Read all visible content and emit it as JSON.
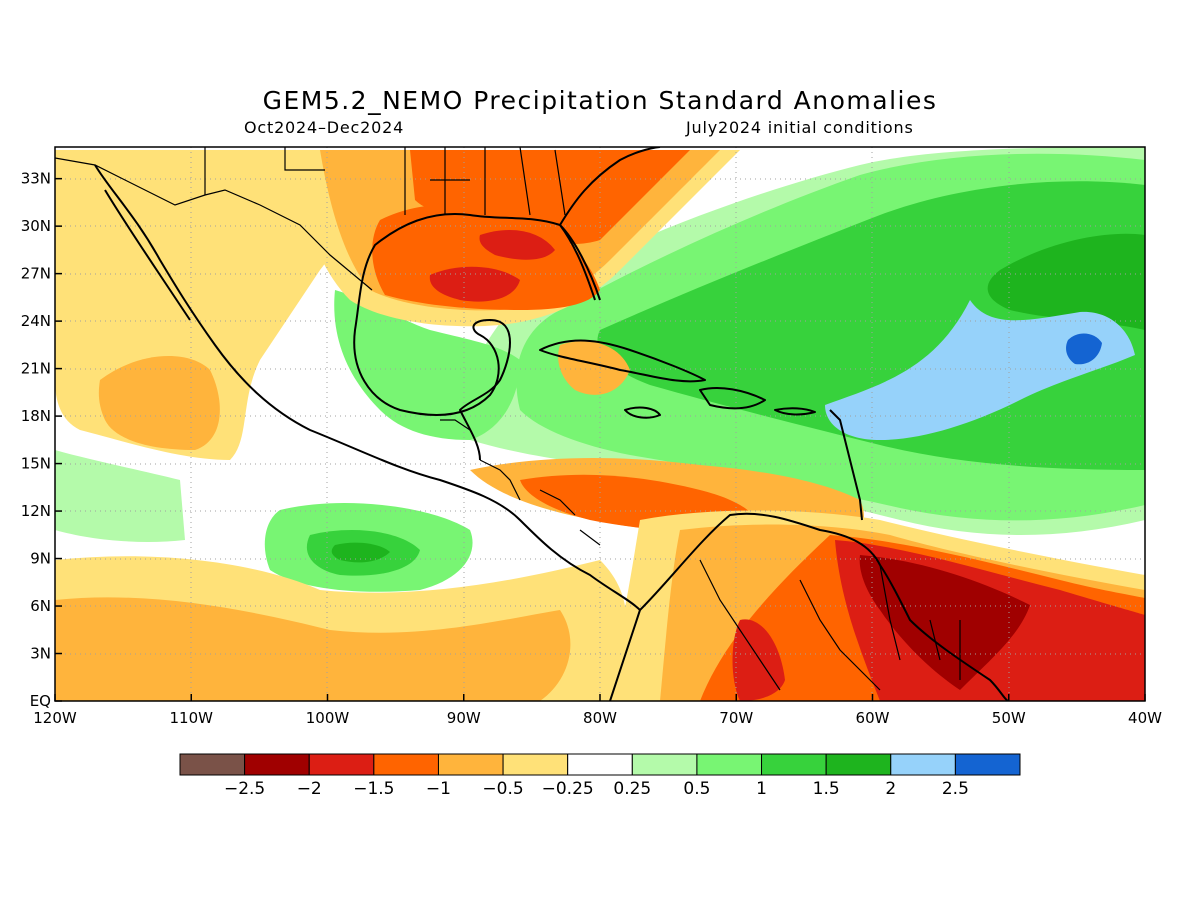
{
  "title": "GEM5.2_NEMO Precipitation Standard Anomalies",
  "subtitle_left": "Oct2024–Dec2024",
  "subtitle_right": "July2024 initial conditions",
  "map": {
    "lon_range": [
      -120,
      -40
    ],
    "lat_range": [
      0,
      35
    ],
    "lon_ticks": [
      "120W",
      "110W",
      "100W",
      "90W",
      "80W",
      "70W",
      "60W",
      "50W",
      "40W"
    ],
    "lat_ticks": [
      "EQ",
      "3N",
      "6N",
      "9N",
      "12N",
      "15N",
      "18N",
      "21N",
      "24N",
      "27N",
      "30N",
      "33N"
    ],
    "grid": true
  },
  "colorbar": {
    "colors": [
      "#7a5248",
      "#a00000",
      "#dc1e14",
      "#ff6400",
      "#ffb43c",
      "#ffe178",
      "#ffffff",
      "#b4faaa",
      "#78f573",
      "#37d23c",
      "#1eb41e",
      "#96d2fa",
      "#1464d2"
    ],
    "labels": [
      "−2.5",
      "−2",
      "−1.5",
      "−1",
      "−0.5",
      "−0.25",
      "0.25",
      "0.5",
      "1",
      "1.5",
      "2",
      "2.5"
    ]
  }
}
